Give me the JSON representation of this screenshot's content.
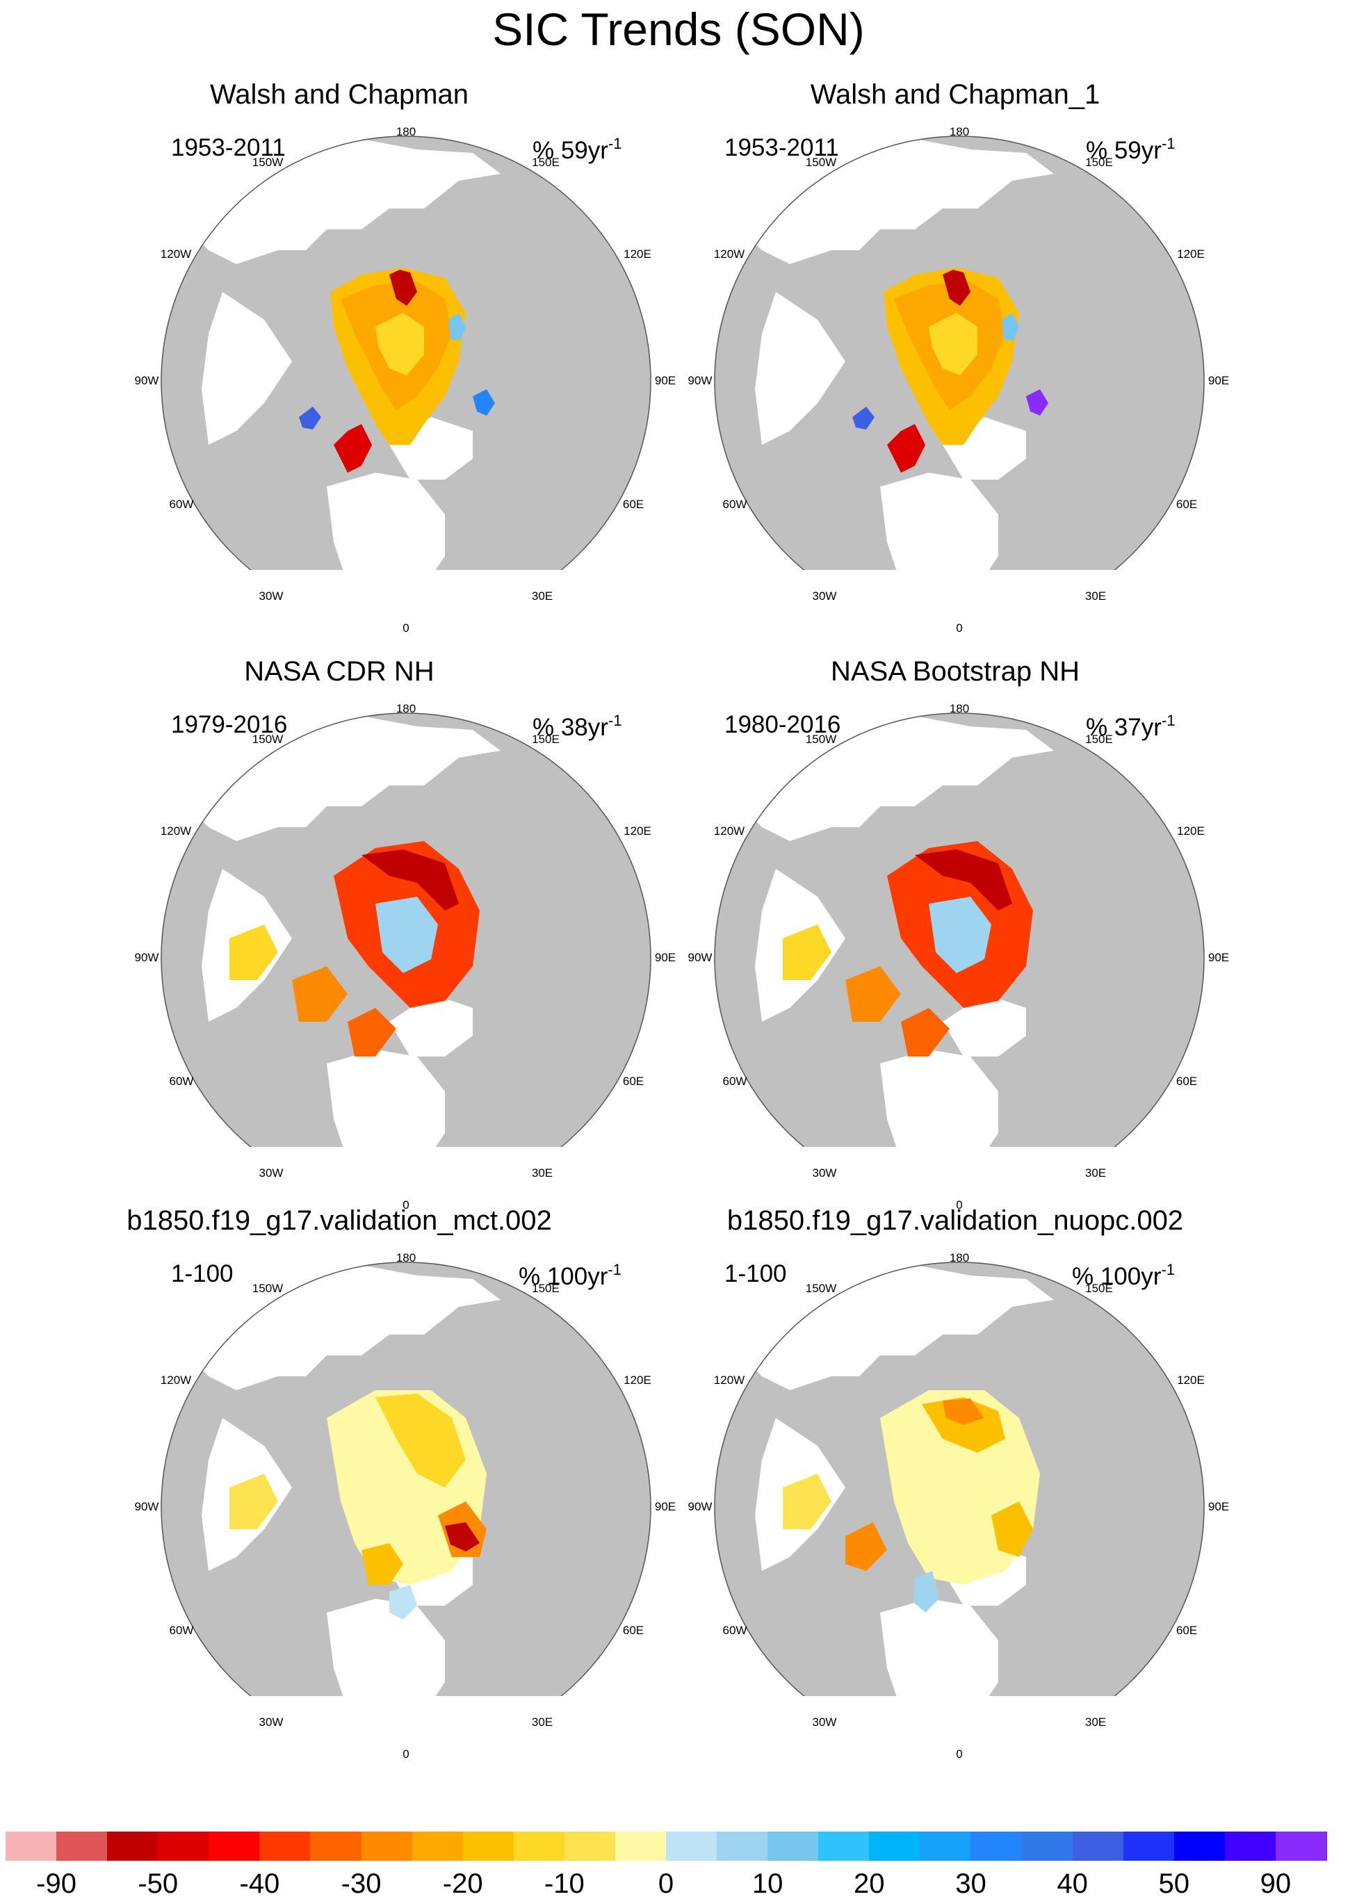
{
  "title": "SIC Trends (SON)",
  "panels": [
    {
      "title": "Walsh and Chapman",
      "period": "1953-2011",
      "unit_prefix": "% 59yr",
      "unit_exp": "-1",
      "style": "observed_historical"
    },
    {
      "title": "Walsh and Chapman_1",
      "period": "1953-2011",
      "unit_prefix": "% 59yr",
      "unit_exp": "-1",
      "style": "observed_historical"
    },
    {
      "title": "NASA CDR NH",
      "period": "1979-2016",
      "unit_prefix": "% 38yr",
      "unit_exp": "-1",
      "style": "satellite"
    },
    {
      "title": "NASA Bootstrap NH",
      "period": "1980-2016",
      "unit_prefix": "% 37yr",
      "unit_exp": "-1",
      "style": "satellite"
    },
    {
      "title": "b1850.f19_g17.validation_mct.002",
      "period": "1-100",
      "unit_prefix": "% 100yr",
      "unit_exp": "-1",
      "style": "model_a"
    },
    {
      "title": "b1850.f19_g17.validation_nuopc.002",
      "period": "1-100",
      "unit_prefix": "% 100yr",
      "unit_exp": "-1",
      "style": "model_b"
    }
  ],
  "map_labels": {
    "lon_180": "180",
    "lon_150w": "150W",
    "lon_150e": "150E",
    "lon_120w": "120W",
    "lon_120e": "120E",
    "lon_90w": "90W",
    "lon_90e": "90E",
    "lon_60w": "60W",
    "lon_60e": "60E",
    "lon_30w": "30W",
    "lon_30e": "30E",
    "lon_0": "0"
  },
  "colors": {
    "land": "#c0c0c0",
    "ocean": "#ffffff",
    "coast": "#555555",
    "colorbar": [
      "#f7b4b4",
      "#e05555",
      "#c00000",
      "#dc0000",
      "#fd0000",
      "#fd3a00",
      "#fd6400",
      "#fd8a00",
      "#fda800",
      "#fdc000",
      "#fdd827",
      "#fde34f",
      "#fef9a4",
      "#bde3f4",
      "#9ed4ef",
      "#77c6f0",
      "#2fc3fa",
      "#00b4fa",
      "#16a2fa",
      "#2286fa",
      "#3178e8",
      "#3d5fe2",
      "#2032f8",
      "#0000fe",
      "#4100fe",
      "#8a2bfe"
    ]
  },
  "colorbar_ticks": [
    "-90",
    "-50",
    "-40",
    "-30",
    "-20",
    "-10",
    "0",
    "10",
    "20",
    "30",
    "40",
    "50",
    "90"
  ]
}
